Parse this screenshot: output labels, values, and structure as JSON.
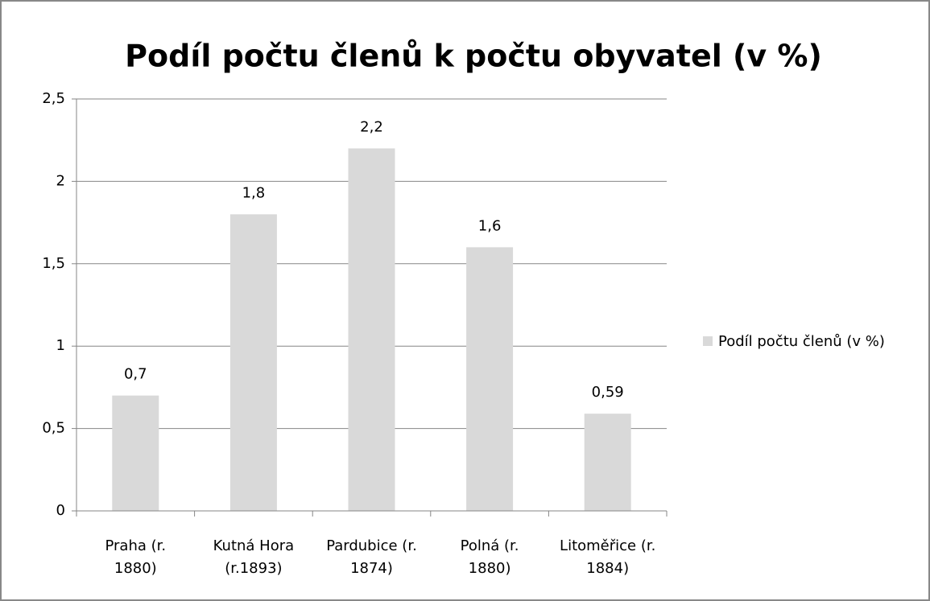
{
  "chart_data": {
    "type": "bar",
    "title": "Podíl počtu členů k počtu obyvatel (v %)",
    "categories": [
      "Praha (r. 1880)",
      "Kutná Hora (r.1893)",
      "Pardubice (r. 1874)",
      "Polná (r. 1880)",
      "Litoměřice (r. 1884)"
    ],
    "series": [
      {
        "name": "Podíl počtu členů (v %)",
        "color": "#d9d9d9",
        "values": [
          0.7,
          1.8,
          2.2,
          1.6,
          0.59
        ],
        "value_labels": [
          "0,7",
          "1,8",
          "2,2",
          "1,6",
          "0,59"
        ]
      }
    ],
    "ylim": [
      0,
      2.5
    ],
    "yticks": [
      0,
      {
        "value": 0.5,
        "label": "0,5"
      },
      1,
      {
        "value": 1.5,
        "label": "1,5"
      },
      2,
      {
        "value": 2.5,
        "label": "2,5"
      }
    ],
    "grid": true,
    "legend": "right"
  }
}
